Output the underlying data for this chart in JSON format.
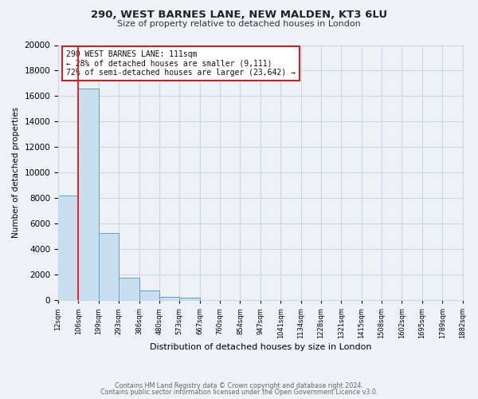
{
  "title_line1": "290, WEST BARNES LANE, NEW MALDEN, KT3 6LU",
  "title_line2": "Size of property relative to detached houses in London",
  "xlabel": "Distribution of detached houses by size in London",
  "ylabel": "Number of detached properties",
  "bin_labels": [
    "12sqm",
    "106sqm",
    "199sqm",
    "293sqm",
    "386sqm",
    "480sqm",
    "573sqm",
    "667sqm",
    "760sqm",
    "854sqm",
    "947sqm",
    "1041sqm",
    "1134sqm",
    "1228sqm",
    "1321sqm",
    "1415sqm",
    "1508sqm",
    "1602sqm",
    "1695sqm",
    "1789sqm",
    "1882sqm"
  ],
  "bar_values": [
    8200,
    16600,
    5300,
    1800,
    750,
    250,
    180,
    0,
    0,
    0,
    0,
    0,
    0,
    0,
    0,
    0,
    0,
    0,
    0,
    0
  ],
  "bar_color": "#c8dff0",
  "bar_edge_color": "#6699cc",
  "red_line_x": 1.0,
  "annotation_title": "290 WEST BARNES LANE: 111sqm",
  "annotation_line1": "← 28% of detached houses are smaller (9,111)",
  "annotation_line2": "72% of semi-detached houses are larger (23,642) →",
  "ylim": [
    0,
    20000
  ],
  "yticks": [
    0,
    2000,
    4000,
    6000,
    8000,
    10000,
    12000,
    14000,
    16000,
    18000,
    20000
  ],
  "grid_color": "#c8d8e8",
  "bg_color": "#eef2f7",
  "footer_line1": "Contains HM Land Registry data © Crown copyright and database right 2024.",
  "footer_line2": "Contains public sector information licensed under the Open Government Licence v3.0."
}
